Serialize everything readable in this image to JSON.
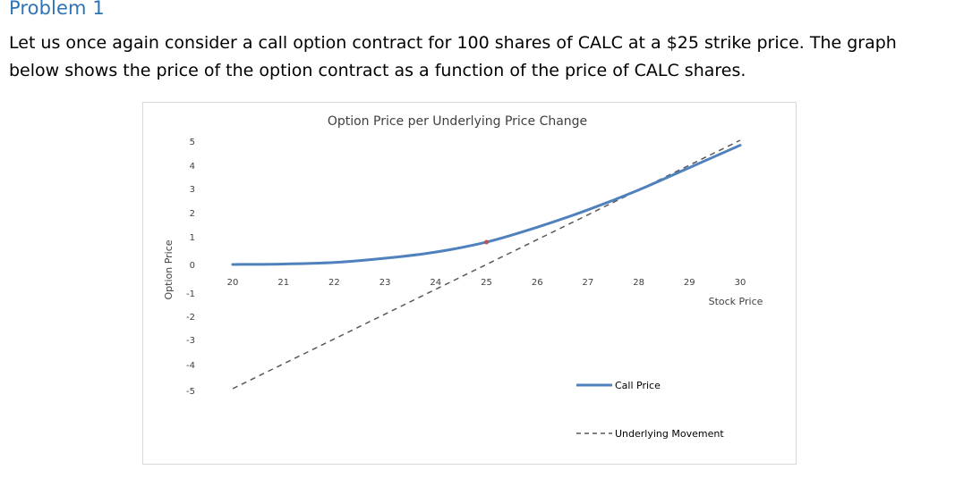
{
  "document": {
    "heading": "Problem 1",
    "paragraph_lines": [
      "Let us once again consider a call option contract for 100 shares of CALC at a $25 strike price.  The graph",
      "below shows the price of the option contract as a function of the price of CALC shares."
    ]
  },
  "chart_data": {
    "type": "line",
    "title": "Option Price per Underlying Price Change",
    "xlabel": "Stock Price",
    "ylabel": "Option Price",
    "xlim": [
      20,
      30
    ],
    "ylim": [
      -5,
      5
    ],
    "x_ticks": [
      "20",
      "21",
      "22",
      "23",
      "24",
      "25",
      "26",
      "27",
      "28",
      "29",
      "30"
    ],
    "y_ticks": [
      "5",
      "4",
      "3",
      "2",
      "1",
      "0",
      "-1",
      "-2",
      "-3",
      "-4",
      "-5"
    ],
    "grid": false,
    "legend_position": "bottom-right",
    "series": [
      {
        "name": "Call Price",
        "style": "solid",
        "color": "#4f81bd",
        "x": [
          20,
          21,
          22,
          23,
          24,
          25,
          26,
          27,
          28,
          29,
          30
        ],
        "y": [
          0.0,
          0.02,
          0.08,
          0.25,
          0.5,
          0.9,
          1.5,
          2.2,
          3.0,
          3.9,
          4.8
        ]
      },
      {
        "name": "Underlying Movement",
        "style": "dashed",
        "color": "#595959",
        "x": [
          20,
          30
        ],
        "y": [
          -5,
          5
        ]
      }
    ],
    "highlight_point": {
      "x": 25,
      "y": 0.9,
      "color": "#c0504d"
    }
  }
}
